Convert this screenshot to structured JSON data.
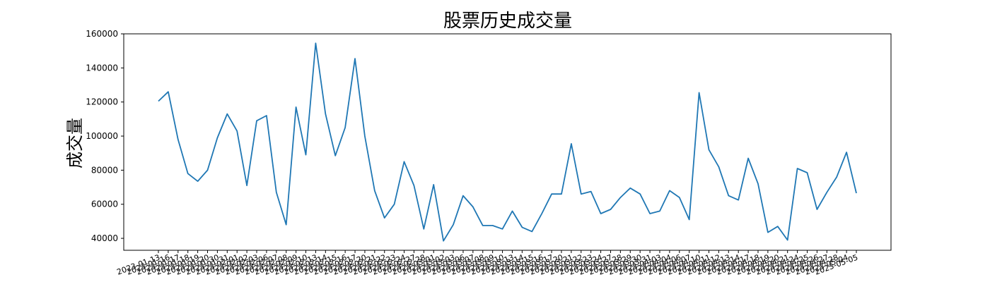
{
  "chart_data": {
    "type": "line",
    "title": "股票历史成交量",
    "xlabel": "",
    "ylabel": "成交量",
    "ylim": [
      33000,
      160000
    ],
    "y_ticks": [
      40000,
      60000,
      80000,
      100000,
      120000,
      140000,
      160000
    ],
    "grid": false,
    "legend": "none",
    "line_color": "#1f77b4",
    "x": [
      "2023-01-13",
      "2023-01-16",
      "2023-01-17",
      "2023-01-18",
      "2023-01-19",
      "2023-01-20",
      "2023-01-30",
      "2023-01-31",
      "2023-02-01",
      "2023-02-02",
      "2023-02-03",
      "2023-02-06",
      "2023-02-07",
      "2023-02-08",
      "2023-02-09",
      "2023-02-10",
      "2023-02-13",
      "2023-02-14",
      "2023-02-15",
      "2023-02-16",
      "2023-02-17",
      "2023-02-20",
      "2023-02-21",
      "2023-02-22",
      "2023-02-23",
      "2023-02-24",
      "2023-02-27",
      "2023-02-28",
      "2023-03-01",
      "2023-03-02",
      "2023-03-03",
      "2023-03-06",
      "2023-03-07",
      "2023-03-08",
      "2023-03-09",
      "2023-03-10",
      "2023-03-13",
      "2023-03-14",
      "2023-03-15",
      "2023-03-16",
      "2023-03-17",
      "2023-03-20",
      "2023-03-21",
      "2023-03-22",
      "2023-03-23",
      "2023-03-24",
      "2023-03-27",
      "2023-03-28",
      "2023-03-29",
      "2023-03-30",
      "2023-03-31",
      "2023-04-03",
      "2023-04-04",
      "2023-04-06",
      "2023-04-07",
      "2023-04-10",
      "2023-04-11",
      "2023-04-12",
      "2023-04-13",
      "2023-04-14",
      "2023-04-17",
      "2023-04-18",
      "2023-04-19",
      "2023-04-20",
      "2023-04-21",
      "2023-04-24",
      "2023-04-25",
      "2023-04-26",
      "2023-04-27",
      "2023-04-28",
      "2023-05-04",
      "2023-05-05"
    ],
    "values": [
      120500,
      126000,
      98000,
      78000,
      73500,
      80000,
      99000,
      113000,
      103000,
      71000,
      109000,
      112000,
      67000,
      48000,
      117000,
      89000,
      154500,
      113000,
      88500,
      105000,
      145500,
      100000,
      68000,
      52000,
      60000,
      85000,
      71000,
      45500,
      71500,
      38500,
      48000,
      65000,
      58500,
      47500,
      47500,
      45500,
      56000,
      46500,
      44000,
      54500,
      66000,
      66000,
      95500,
      66000,
      67500,
      54500,
      57000,
      64000,
      69500,
      66000,
      54500,
      56000,
      68000,
      64000,
      51000,
      125500,
      92000,
      82000,
      65000,
      62500,
      87000,
      72000,
      43500,
      47000,
      39000,
      81000,
      78500,
      57000,
      67000,
      76000,
      90500,
      66500
    ]
  }
}
